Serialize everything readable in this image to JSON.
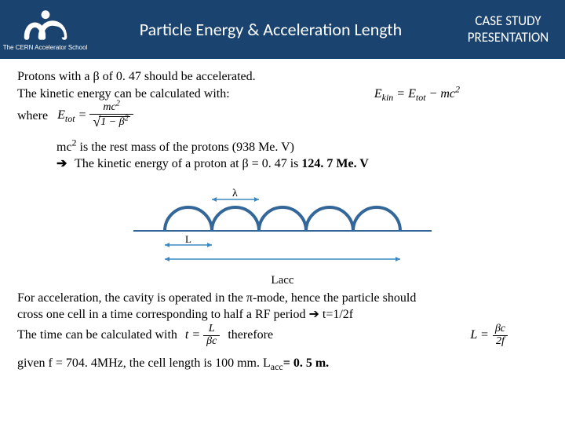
{
  "header": {
    "logo_caption": "The CERN Accelerator School",
    "title": "Particle Energy & Acceleration Length",
    "case_line1": "CASE STUDY",
    "case_line2": "PRESENTATION"
  },
  "intro": {
    "line1": "Protons with a β of 0. 47 should be accelerated.",
    "line2": "The kinetic energy can be calculated with:",
    "ekin_eq": "E_kin = E_tot − mc²",
    "where": "where",
    "etot_lhs": "E_tot =",
    "etot_num": "mc²",
    "etot_den_inside": "1 − β²"
  },
  "mass": {
    "line1_pre": "mc",
    "line1_post": " is the rest mass of the protons (938 Me. V)",
    "line2": "The kinetic energy of a proton at β = 0. 47 is 124. 7 Me. V"
  },
  "cavity": {
    "lambda": "λ",
    "L": "L",
    "Lacc": "Lacc",
    "num_cells": 5,
    "stroke_color": "#336699",
    "arrow_color": "#3b88c4"
  },
  "para2": {
    "l1": "For acceleration, the cavity is operated in the π-mode, hence the particle should",
    "l2": "cross one cell in a time corresponding to half a RF period ➔ t=1/2f",
    "l3_pre": "The time can be calculated with",
    "t_lhs": "t = ",
    "t_frac_num": "L",
    "t_frac_den": "βc",
    "therefore": "therefore",
    "L_lhs": "L = ",
    "L_num": "βc",
    "L_den": "2f"
  },
  "last": {
    "pre": "given f = 704. 4MHz, the cell length is 100 mm. L",
    "sub": "acc",
    "post": "= 0. 5 m."
  },
  "colors": {
    "header_bg": "#1a446f",
    "text": "#000000",
    "bg": "#ffffff"
  }
}
